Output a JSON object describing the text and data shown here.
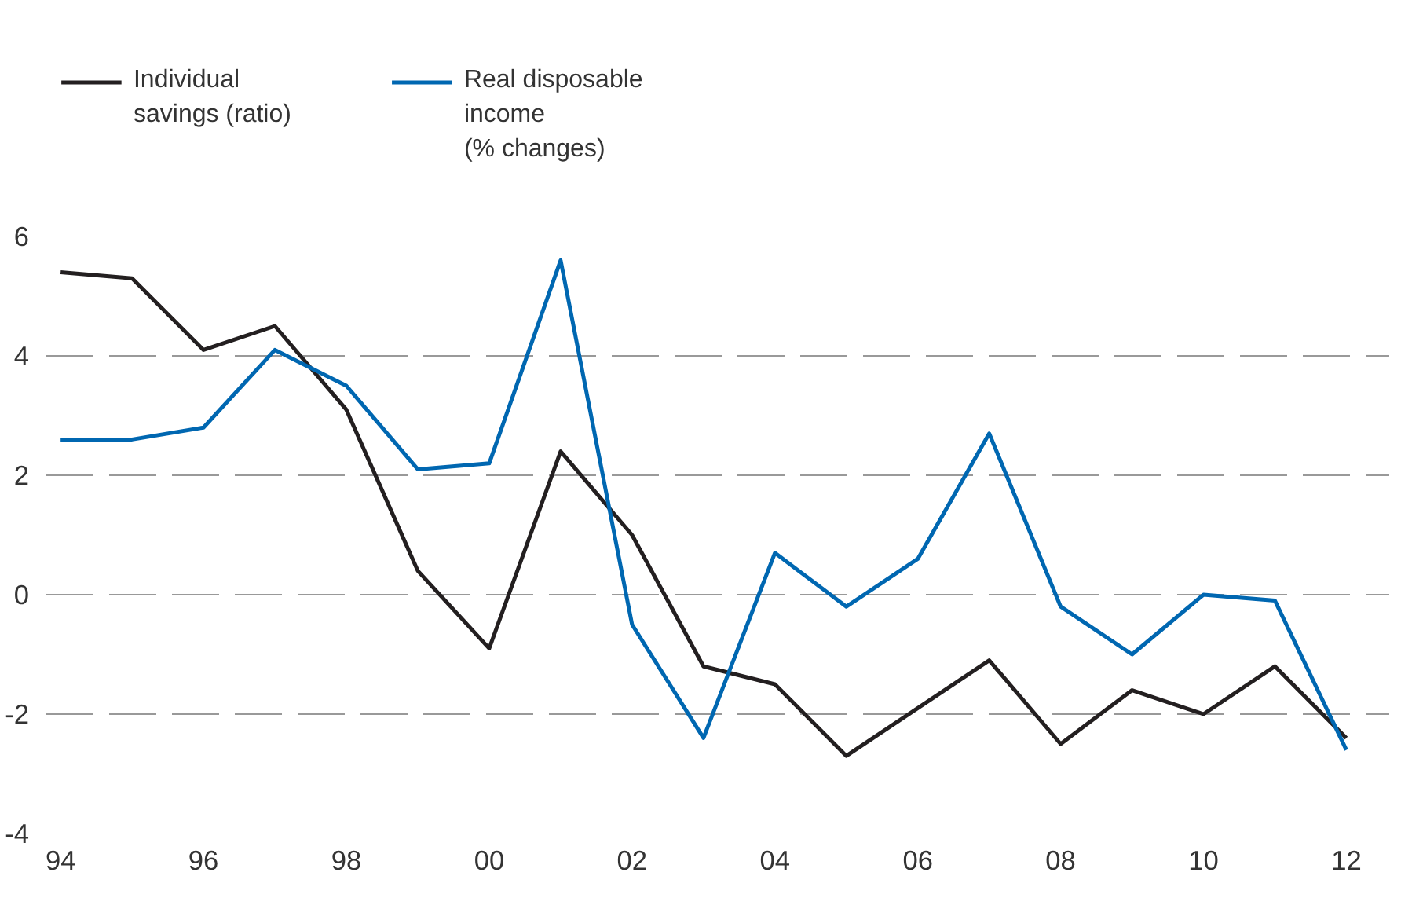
{
  "chart_data": {
    "type": "line",
    "x": [
      1994,
      1995,
      1996,
      1997,
      1998,
      1999,
      2000,
      2001,
      2002,
      2003,
      2004,
      2005,
      2006,
      2007,
      2008,
      2009,
      2010,
      2011,
      2012
    ],
    "series": [
      {
        "name": "Individual\nsavings (ratio)",
        "color": "#231f20",
        "values": [
          5.4,
          5.3,
          4.1,
          4.5,
          3.1,
          0.4,
          -0.9,
          2.4,
          1.0,
          -1.2,
          -1.5,
          -2.7,
          -1.9,
          -1.1,
          -2.5,
          -1.6,
          -2.0,
          -1.2,
          -2.4
        ]
      },
      {
        "name": "Real disposable\nincome\n(% changes)",
        "color": "#0067b1",
        "values": [
          2.6,
          2.6,
          2.8,
          4.1,
          3.5,
          2.1,
          2.2,
          5.6,
          -0.5,
          -2.4,
          0.7,
          -0.2,
          0.6,
          2.7,
          -0.2,
          -1.0,
          0.0,
          -0.1,
          -2.6
        ]
      }
    ],
    "xlim": [
      1993.8,
      2012.6
    ],
    "ylim": [
      -4,
      6
    ],
    "xticks": [
      {
        "value": 1994,
        "label": "94"
      },
      {
        "value": 1996,
        "label": "96"
      },
      {
        "value": 1998,
        "label": "98"
      },
      {
        "value": 2000,
        "label": "00"
      },
      {
        "value": 2002,
        "label": "02"
      },
      {
        "value": 2004,
        "label": "04"
      },
      {
        "value": 2006,
        "label": "06"
      },
      {
        "value": 2008,
        "label": "08"
      },
      {
        "value": 2010,
        "label": "10"
      },
      {
        "value": 2012,
        "label": "12"
      }
    ],
    "yticks": [
      -4,
      -2,
      0,
      2,
      4,
      6
    ],
    "grid": "y",
    "legend": "top left",
    "line_style": "solid"
  }
}
